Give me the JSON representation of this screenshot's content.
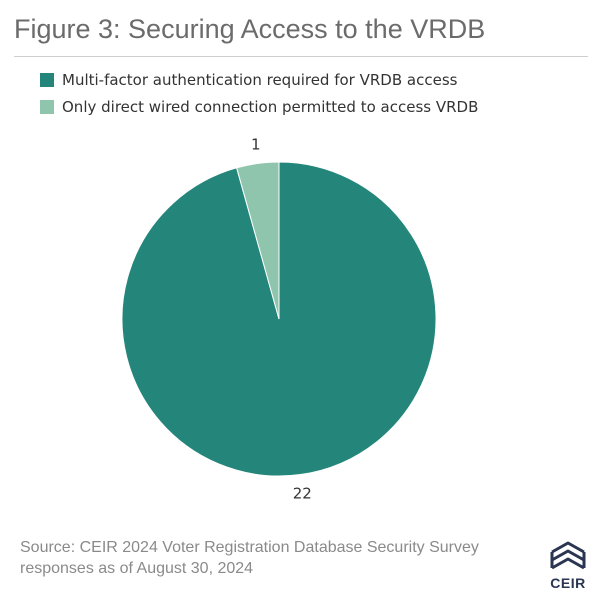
{
  "title": "Figure 3: Securing Access to the VRDB",
  "source_line1": "Source: CEIR 2024 Voter Registration Database Security Survey",
  "source_line2": "responses as of August 30, 2024",
  "logo_text": "CEIR",
  "colors": {
    "primary": "#24857a",
    "secondary": "#8fc5ad",
    "logo": "#2a3552"
  },
  "chart_data": {
    "type": "pie",
    "title": "Figure 3: Securing Access to the VRDB",
    "legend_position": "top-left",
    "slices": [
      {
        "label": "Multi-factor authentication required for VRDB access",
        "value": 22,
        "color": "#24857a"
      },
      {
        "label": "Only direct wired connection permitted to access VRDB",
        "value": 1,
        "color": "#8fc5ad"
      }
    ]
  }
}
